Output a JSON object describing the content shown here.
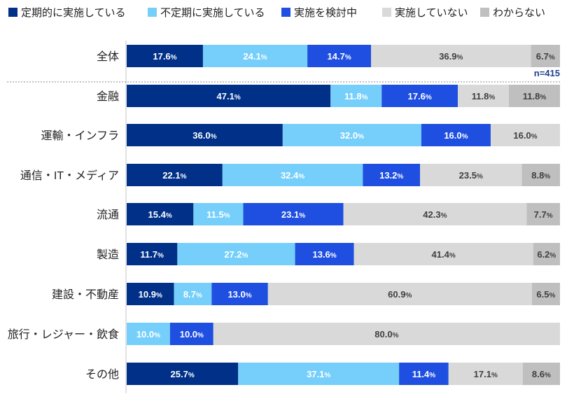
{
  "chart_data": {
    "type": "bar",
    "orientation": "horizontal",
    "stacked": true,
    "percent_stacked": true,
    "legend_position": "top",
    "grid": false,
    "xlim": [
      0,
      100
    ],
    "unit": "%",
    "sample_note": "n=415",
    "categories": [
      "全体",
      "金融",
      "運輸・インフラ",
      "通信・IT・メディア",
      "流通",
      "製造",
      "建設・不動産",
      "旅行・レジャー・飲食",
      "その他"
    ],
    "series": [
      {
        "name": "定期的に実施している",
        "color": "#003087",
        "label_color": "#ffffff",
        "values": [
          17.6,
          47.1,
          36.0,
          22.1,
          15.4,
          11.7,
          10.9,
          0,
          25.7
        ]
      },
      {
        "name": "不定期に実施している",
        "color": "#75CFFA",
        "label_color": "#ffffff",
        "values": [
          24.1,
          11.8,
          32.0,
          32.4,
          11.5,
          27.2,
          8.7,
          10.0,
          37.1
        ]
      },
      {
        "name": "実施を検討中",
        "color": "#1F4FE0",
        "label_color": "#ffffff",
        "values": [
          14.7,
          17.6,
          16.0,
          13.2,
          23.1,
          13.6,
          13.0,
          10.0,
          11.4
        ]
      },
      {
        "name": "実施していない",
        "color": "#D9D9D9",
        "label_color": "#404040",
        "values": [
          36.9,
          11.8,
          16.0,
          23.5,
          42.3,
          41.4,
          60.9,
          80.0,
          17.1
        ]
      },
      {
        "name": "わからない",
        "color": "#BFBFBF",
        "label_color": "#404040",
        "values": [
          6.7,
          11.8,
          0,
          8.8,
          7.7,
          6.2,
          6.5,
          0,
          8.6
        ]
      }
    ]
  }
}
